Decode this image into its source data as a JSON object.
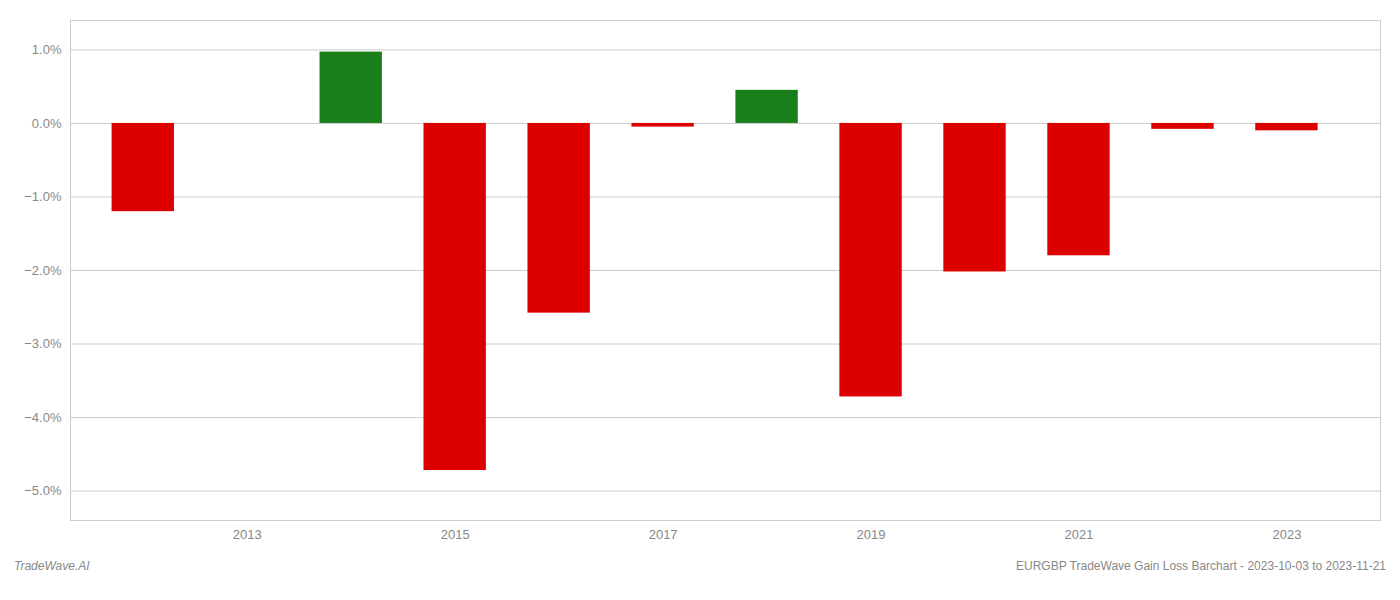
{
  "chart_data": {
    "type": "bar",
    "title": "EURGBP TradeWave Gain Loss Barchart - 2023-10-03 to 2023-11-21",
    "annotations": [
      "TradeWave.AI"
    ],
    "x": [
      2012,
      2014,
      2015,
      2016,
      2017,
      2018,
      2019,
      2020,
      2021,
      2022,
      2023
    ],
    "values": [
      -0.012,
      0.0097,
      -0.0472,
      -0.0258,
      -0.0005,
      0.0045,
      -0.0372,
      -0.0202,
      -0.018,
      -0.0008,
      -0.001
    ],
    "colors": [
      "#dd0000",
      "#1a7f1a",
      "#dd0000",
      "#dd0000",
      "#dd0000",
      "#1a7f1a",
      "#dd0000",
      "#dd0000",
      "#dd0000",
      "#dd0000",
      "#dd0000"
    ],
    "xlim": [
      2011.3,
      2023.9
    ],
    "xticks": [
      2013,
      2015,
      2017,
      2019,
      2021,
      2023
    ],
    "ylim": [
      -0.054,
      0.014
    ],
    "yticks": [
      {
        "value": -0.05,
        "label": "−5.0%"
      },
      {
        "value": -0.04,
        "label": "−4.0%"
      },
      {
        "value": -0.03,
        "label": "−3.0%"
      },
      {
        "value": -0.02,
        "label": "−2.0%"
      },
      {
        "value": -0.01,
        "label": "−1.0%"
      },
      {
        "value": 0.0,
        "label": "0.0%"
      },
      {
        "value": 0.01,
        "label": "1.0%"
      }
    ],
    "grid": true
  }
}
